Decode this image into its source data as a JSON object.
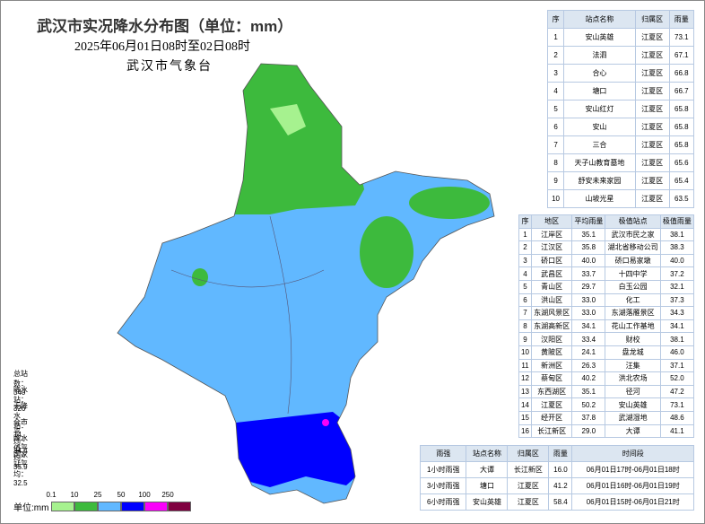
{
  "header": {
    "title": "武汉市实况降水分布图（单位：mm）",
    "period": "2025年06月01日08时至02日08时",
    "issuer": "武汉市气象台"
  },
  "stats": [
    "总站数：340",
    "降水站：326",
    "无降水站：14",
    "全市平均：34.4",
    "降水值平均：35.9",
    "国家站平均：32.5"
  ],
  "legend": {
    "unit": "单位:mm",
    "breaks": [
      "0.1",
      "10",
      "25",
      "50",
      "100",
      "250"
    ],
    "colors": [
      "#a6f28f",
      "#3dba3d",
      "#61b8ff",
      "#0000ff",
      "#fa00fa",
      "#800040"
    ]
  },
  "top_table": {
    "columns": [
      "序",
      "站点名称",
      "归属区",
      "雨量"
    ],
    "rows": [
      [
        "1",
        "安山英雄",
        "江夏区",
        "73.1"
      ],
      [
        "2",
        "法泗",
        "江夏区",
        "67.1"
      ],
      [
        "3",
        "合心",
        "江夏区",
        "66.8"
      ],
      [
        "4",
        "塘口",
        "江夏区",
        "66.7"
      ],
      [
        "5",
        "安山红灯",
        "江夏区",
        "65.8"
      ],
      [
        "6",
        "安山",
        "江夏区",
        "65.8"
      ],
      [
        "7",
        "三合",
        "江夏区",
        "65.8"
      ],
      [
        "8",
        "天子山教育墓地",
        "江夏区",
        "65.6"
      ],
      [
        "9",
        "舒安未来家园",
        "江夏区",
        "65.4"
      ],
      [
        "10",
        "山坡光星",
        "江夏区",
        "63.5"
      ]
    ]
  },
  "district_table": {
    "columns": [
      "序",
      "地区",
      "平均雨量",
      "极值站点",
      "极值雨量"
    ],
    "rows": [
      [
        "1",
        "江岸区",
        "35.1",
        "武汉市民之家",
        "38.1"
      ],
      [
        "2",
        "江汉区",
        "35.8",
        "湖北省移动公司",
        "38.3"
      ],
      [
        "3",
        "硚口区",
        "40.0",
        "硚口易家墩",
        "40.0"
      ],
      [
        "4",
        "武昌区",
        "33.7",
        "十四中学",
        "37.2"
      ],
      [
        "5",
        "青山区",
        "29.7",
        "白玉公园",
        "32.1"
      ],
      [
        "6",
        "洪山区",
        "33.0",
        "化工",
        "37.3"
      ],
      [
        "7",
        "东湖风景区",
        "33.0",
        "东湖落雁景区",
        "34.3"
      ],
      [
        "8",
        "东湖高新区",
        "34.1",
        "花山工作基地",
        "34.1"
      ],
      [
        "9",
        "汉阳区",
        "33.4",
        "财校",
        "38.1"
      ],
      [
        "10",
        "黄陂区",
        "24.1",
        "盘龙城",
        "46.0"
      ],
      [
        "11",
        "新洲区",
        "26.3",
        "汪集",
        "37.1"
      ],
      [
        "12",
        "蔡甸区",
        "40.2",
        "洪北农场",
        "52.0"
      ],
      [
        "13",
        "东西湖区",
        "35.1",
        "径河",
        "47.2"
      ],
      [
        "14",
        "江夏区",
        "50.2",
        "安山英雄",
        "73.1"
      ],
      [
        "15",
        "经开区",
        "37.8",
        "武湖湿地",
        "48.6"
      ],
      [
        "16",
        "长江新区",
        "29.0",
        "大谭",
        "41.1"
      ]
    ]
  },
  "intensity_table": {
    "columns": [
      "雨强",
      "站点名称",
      "归属区",
      "雨量",
      "时间段"
    ],
    "rows": [
      [
        "1小时雨强",
        "大谭",
        "长江新区",
        "16.0",
        "06月01日17时-06月01日18时"
      ],
      [
        "3小时雨强",
        "塘口",
        "江夏区",
        "41.2",
        "06月01日16时-06月01日19时"
      ],
      [
        "6小时雨强",
        "安山英雄",
        "江夏区",
        "58.4",
        "06月01日15时-06月01日21时"
      ]
    ]
  }
}
